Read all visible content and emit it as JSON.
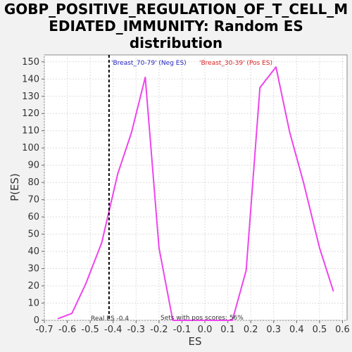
{
  "chart_data": {
    "type": "line",
    "title_lines": [
      "GOBP_POSITIVE_REGULATION_OF_T_CELL_M",
      "EDIATED_IMMUNITY: Random ES",
      "distribution"
    ],
    "xlabel": "ES",
    "ylabel": "P(ES)",
    "xlim": [
      -0.7,
      0.62
    ],
    "ylim": [
      0,
      154
    ],
    "xticks": [
      -0.7,
      -0.6,
      -0.5,
      -0.4,
      -0.3,
      -0.2,
      -0.1,
      0.0,
      0.1,
      0.2,
      0.3,
      0.4,
      0.5,
      0.6
    ],
    "xtick_labels": [
      "-0.7",
      "-0.6",
      "-0.5",
      "-0.4",
      "-0.3",
      "-0.2",
      "-0.1",
      "0.0",
      "0.1",
      "0.2",
      "0.3",
      "0.4",
      "0.5",
      "0.6"
    ],
    "yticks": [
      0,
      10,
      20,
      30,
      40,
      50,
      60,
      70,
      80,
      90,
      100,
      110,
      120,
      130,
      140,
      150
    ],
    "grid": true,
    "series": [
      {
        "color": "#ee44ee",
        "x": [
          -0.64,
          -0.58,
          -0.52,
          -0.45,
          -0.38,
          -0.32,
          -0.26,
          -0.2,
          -0.14,
          -0.07,
          0.0,
          0.06,
          0.12,
          0.18,
          0.24,
          0.31,
          0.37,
          0.43,
          0.5,
          0.56
        ],
        "y": [
          1,
          4,
          21,
          45,
          85,
          109,
          141,
          42,
          0,
          0,
          0,
          0,
          0,
          29,
          135,
          147,
          109,
          80,
          42,
          17
        ]
      }
    ],
    "real_es": -0.418,
    "annotations": {
      "neg_label": "'Breast_70-79' (Neg ES)",
      "pos_label": "'Breast_30-39' (Pos ES)",
      "real_es_label": "Real ES -0.4",
      "pos_scores_label": "Sets with pos scores: 56%"
    },
    "colors": {
      "neg": "#2222bb",
      "pos": "#dd2222",
      "line": "#ee44ee"
    }
  }
}
